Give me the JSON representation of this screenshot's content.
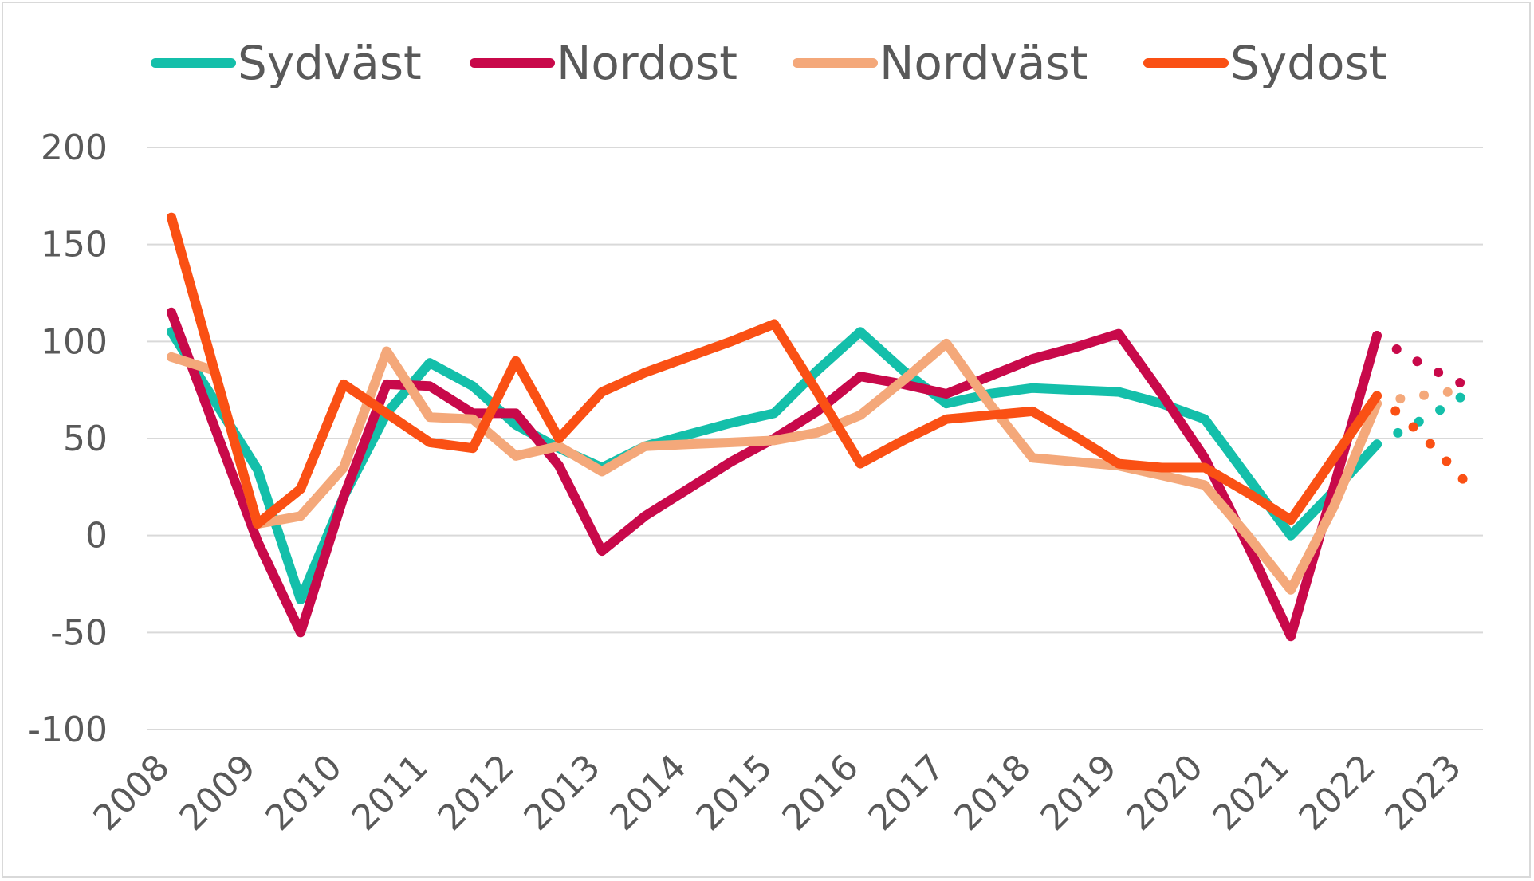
{
  "chart_data": {
    "type": "line",
    "title": "",
    "xlabel": "",
    "ylabel": "",
    "x_tick_labels": [
      "2008",
      "2009",
      "2010",
      "2011",
      "2012",
      "2013",
      "2014",
      "2015",
      "2016",
      "2017",
      "2018",
      "2019",
      "2020",
      "2021",
      "2022",
      "2023"
    ],
    "ylim": [
      -100,
      200
    ],
    "y_ticks": [
      -100,
      -50,
      0,
      50,
      100,
      150,
      200
    ],
    "y_tick_labels": [
      "-100",
      "-50",
      "0",
      "50",
      "100",
      "150",
      "200"
    ],
    "grid": "horizontal",
    "legend_position": "top",
    "x_range": [
      2008,
      2022
    ],
    "series": [
      {
        "name": "Sydväst",
        "color": "#14bfaa",
        "x": [
          2008,
          2009,
          2009.5,
          2010,
          2010.5,
          2011,
          2011.5,
          2012,
          2012.5,
          2013,
          2013.5,
          2014,
          2014.5,
          2015,
          2015.5,
          2016,
          2016.5,
          2017,
          2017.5,
          2018,
          2018.5,
          2019,
          2019.5,
          2020,
          2020.5,
          2021,
          2021.5,
          2022
        ],
        "values": [
          105,
          34,
          -33,
          20,
          63,
          89,
          77,
          57,
          45,
          35,
          46,
          52,
          58,
          63,
          85,
          105,
          85,
          68,
          73,
          76,
          75,
          74,
          68,
          60,
          30,
          0,
          23,
          47
        ],
        "forecast_x": [
          2022,
          2022.33,
          2022.67,
          2023
        ],
        "forecast_values": [
          47,
          55,
          63,
          72
        ]
      },
      {
        "name": "Nordost",
        "color": "#c8094a",
        "x": [
          2008,
          2009,
          2009.5,
          2010,
          2010.5,
          2011,
          2011.5,
          2012,
          2012.5,
          2013,
          2013.5,
          2014,
          2014.5,
          2015,
          2015.5,
          2016,
          2016.5,
          2017,
          2017.5,
          2018,
          2018.5,
          2019,
          2019.5,
          2020,
          2020.5,
          2021,
          2021.5,
          2022
        ],
        "values": [
          115,
          -3,
          -50,
          20,
          78,
          77,
          63,
          63,
          36,
          -8,
          10,
          24,
          38,
          50,
          64,
          82,
          78,
          73,
          82,
          91,
          97,
          104,
          73,
          40,
          -5,
          -52,
          25,
          103
        ],
        "forecast_x": [
          2022,
          2022.33,
          2022.67,
          2023
        ],
        "forecast_values": [
          103,
          93,
          85,
          78
        ]
      },
      {
        "name": "Nordväst",
        "color": "#f4a87a",
        "x": [
          2008,
          2008.5,
          2009,
          2009.5,
          2010,
          2010.5,
          2011,
          2011.5,
          2012,
          2012.5,
          2013,
          2013.5,
          2014,
          2014.5,
          2015,
          2015.5,
          2016,
          2016.5,
          2017,
          2017.5,
          2018,
          2018.5,
          2019,
          2019.5,
          2020,
          2020.5,
          2021,
          2021.5,
          2022
        ],
        "values": [
          92,
          85,
          6,
          10,
          35,
          95,
          61,
          60,
          41,
          46,
          33,
          46,
          47,
          48,
          49,
          53,
          62,
          80,
          99,
          68,
          40,
          38,
          36,
          31,
          26,
          0,
          -28,
          15,
          68
        ],
        "forecast_x": [
          2022,
          2022.33,
          2022.67,
          2023
        ],
        "forecast_values": [
          68,
          71,
          73,
          75
        ]
      },
      {
        "name": "Sydost",
        "color": "#fa5014",
        "x": [
          2008,
          2009,
          2009.5,
          2010,
          2010.5,
          2011,
          2011.5,
          2012,
          2012.5,
          2013,
          2013.5,
          2014,
          2014.5,
          2015,
          2015.5,
          2016,
          2016.5,
          2017,
          2017.5,
          2018,
          2018.5,
          2019,
          2019.5,
          2020,
          2020.5,
          2021,
          2021.5,
          2022
        ],
        "values": [
          164,
          6,
          24,
          78,
          63,
          48,
          45,
          90,
          50,
          74,
          84,
          92,
          100,
          109,
          74,
          37,
          49,
          60,
          62,
          64,
          51,
          37,
          35,
          35,
          22,
          8,
          40,
          72
        ],
        "forecast_x": [
          2022,
          2022.33,
          2022.67,
          2023
        ],
        "forecast_values": [
          72,
          60,
          45,
          29
        ]
      }
    ]
  }
}
